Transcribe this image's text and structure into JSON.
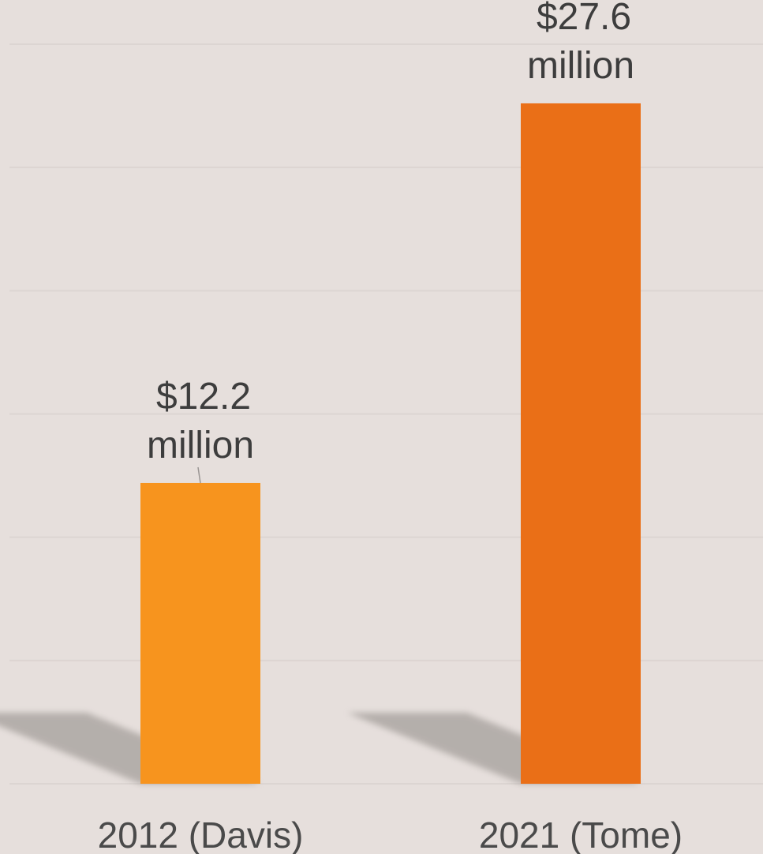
{
  "chart_data": {
    "type": "bar",
    "categories": [
      "2012 (Davis)",
      "2021 (Tome)"
    ],
    "values": [
      12.2,
      27.6
    ],
    "data_labels": [
      [
        "$12.2",
        "million"
      ],
      [
        "$27.6",
        "million"
      ]
    ],
    "ylim": [
      0,
      30
    ],
    "grid": true,
    "legend": "none",
    "colors": [
      "#f7941e",
      "#ea6f17"
    ],
    "grid_color": "#dcd5d2",
    "text_color": "#3d3d3d"
  }
}
